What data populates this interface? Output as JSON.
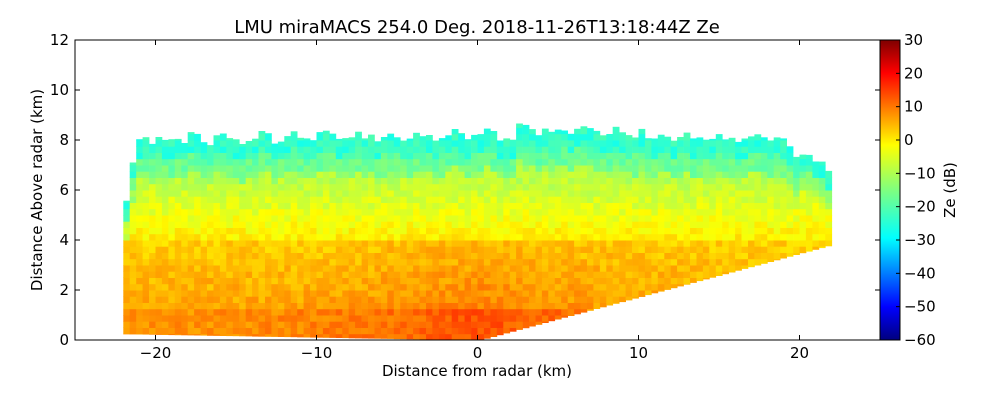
{
  "chart_data": {
    "type": "heatmap",
    "title": "LMU miraMACS 254.0 Deg. 2018-11-26T13:18:44Z  Ze",
    "xlabel": "Distance from radar (km)",
    "ylabel": "Distance Above radar  (km)",
    "xlim": [
      -25,
      25
    ],
    "ylim": [
      0,
      12
    ],
    "xticks": [
      -20,
      -10,
      0,
      10,
      20
    ],
    "xtick_labels": [
      "−20",
      "−10",
      "0",
      "10",
      "20"
    ],
    "yticks": [
      0,
      2,
      4,
      6,
      8,
      10,
      12
    ],
    "ytick_labels": [
      "0",
      "2",
      "4",
      "6",
      "8",
      "10",
      "12"
    ],
    "colorbar": {
      "label": "Ze (dB)",
      "range": [
        -60,
        30
      ],
      "ticks": [
        30,
        20,
        10,
        0,
        -10,
        -20,
        -30,
        -40,
        -50,
        -60
      ],
      "tick_labels": [
        "30",
        "20",
        "10",
        "0",
        "−10",
        "−20",
        "−30",
        "−40",
        "−50",
        "−60"
      ],
      "colormap": "jet"
    },
    "scan": {
      "left_edge_km": -22,
      "right_edge_km": 21.8,
      "right_edge_top_km": 3.8,
      "cloud_top_km": 8.2,
      "typical_ze_dB": {
        "near_surface_center": 12,
        "near_surface_left": 5,
        "mid_level_4km": 0,
        "upper_level_6_8km": -15,
        "cloud_top": -25
      }
    }
  }
}
